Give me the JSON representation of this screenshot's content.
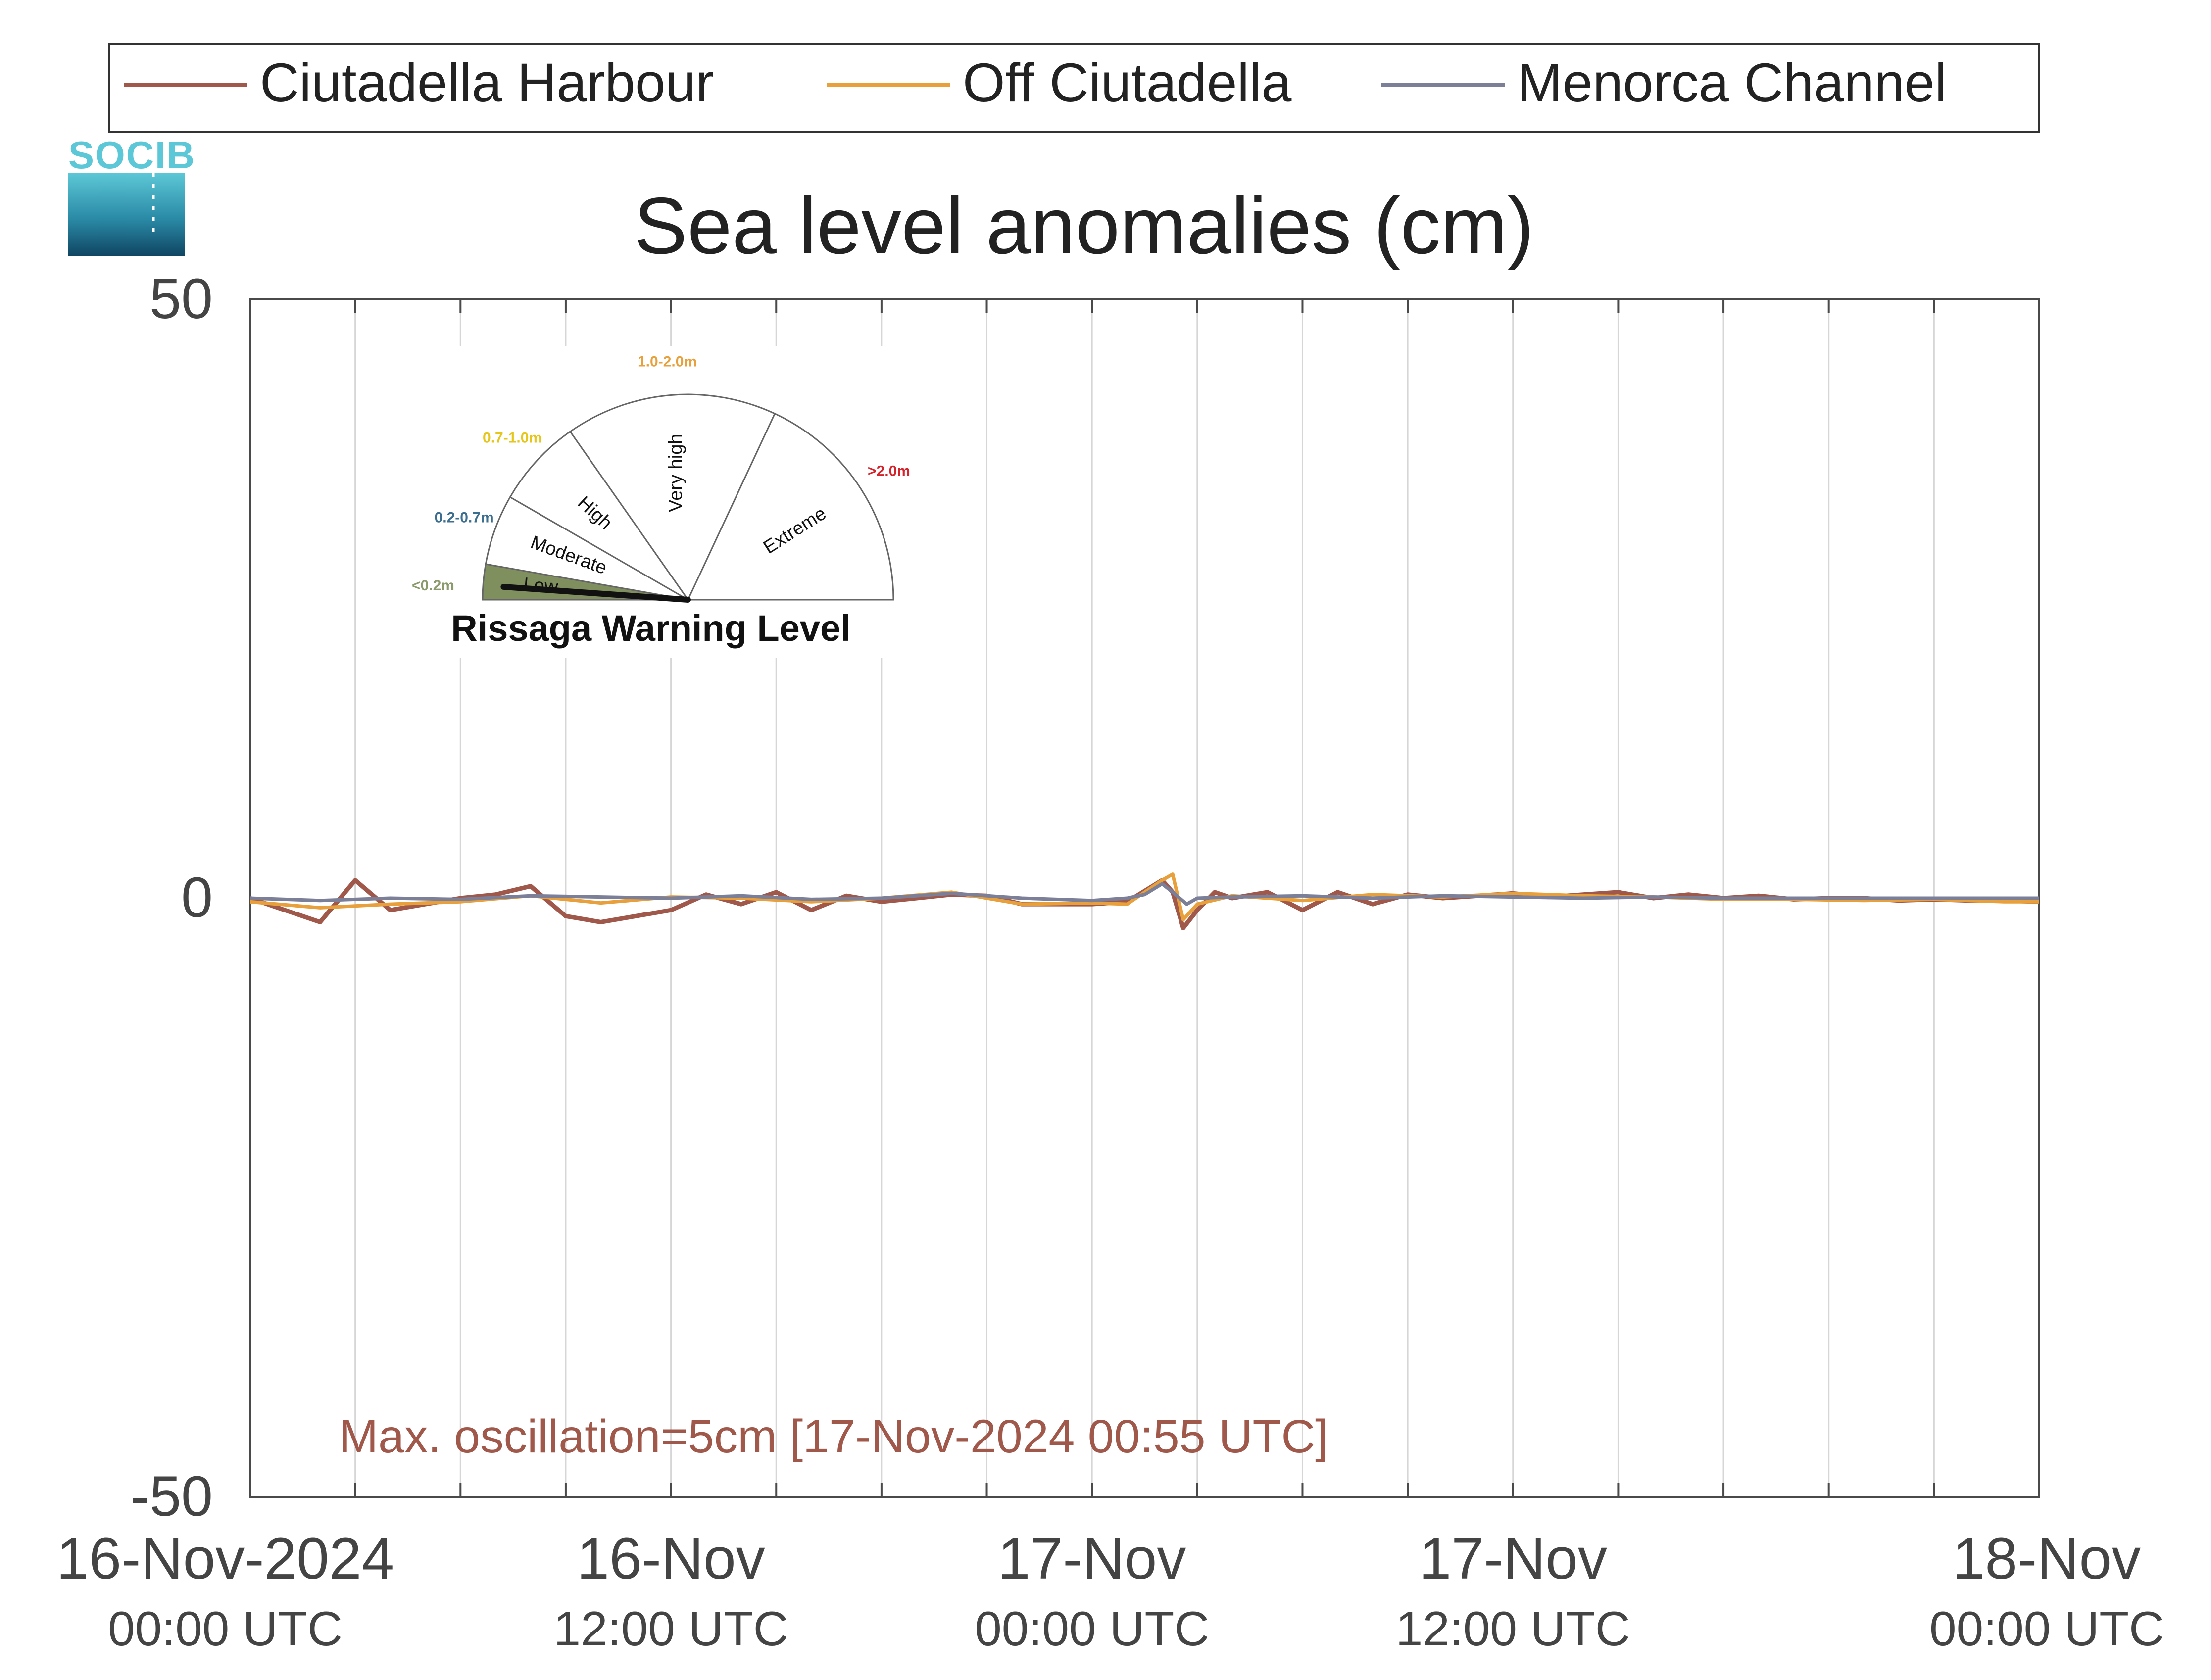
{
  "logo": {
    "text": "SOCIB"
  },
  "chart_data": {
    "type": "line",
    "title": "Sea level anomalies (cm)",
    "xlabel": "",
    "ylabel": "",
    "ylim": [
      -50,
      50
    ],
    "y_ticks": [
      "50",
      "0",
      "-50"
    ],
    "x_range_hours": [
      0,
      51
    ],
    "x_ticks": [
      {
        "date": "16-Nov-2024",
        "time": "00:00 UTC"
      },
      {
        "date": "16-Nov",
        "time": "12:00 UTC"
      },
      {
        "date": "17-Nov",
        "time": "00:00 UTC"
      },
      {
        "date": "17-Nov",
        "time": "12:00 UTC"
      },
      {
        "date": "18-Nov",
        "time": "00:00 UTC"
      }
    ],
    "grid": true,
    "legend_position": "top",
    "series": [
      {
        "name": "Ciutadella Harbour",
        "color": "#a0584a",
        "x": [
          0,
          1,
          2,
          3,
          4,
          5,
          6,
          7,
          8,
          9,
          10,
          11,
          12,
          13,
          14,
          15,
          16,
          17,
          18,
          19,
          20,
          21,
          22,
          23,
          24,
          25,
          26,
          26.3,
          26.6,
          27,
          27.5,
          28,
          29,
          30,
          31,
          32,
          33,
          34,
          35,
          36,
          37,
          38,
          39,
          40,
          41,
          42,
          43,
          44,
          45,
          46,
          47,
          48,
          49,
          50,
          51
        ],
        "y": [
          0,
          -1,
          -2,
          1.5,
          -1,
          -0.5,
          0,
          0.3,
          1,
          -1.5,
          -2,
          -1.5,
          -1,
          0.3,
          -0.5,
          0.5,
          -1,
          0.2,
          -0.3,
          0,
          0.3,
          0.2,
          -0.5,
          -0.5,
          -0.5,
          -0.3,
          1.5,
          0.5,
          -2.5,
          -1,
          0.5,
          0,
          0.5,
          -1,
          0.5,
          -0.5,
          0.3,
          0,
          0.2,
          0.4,
          0.1,
          0.3,
          0.5,
          0,
          0.3,
          0,
          0.2,
          -0.1,
          0,
          0,
          -0.2,
          -0.1,
          -0.2,
          -0.2,
          -0.3
        ]
      },
      {
        "name": "Off Ciutadella",
        "color": "#e8a03c",
        "x": [
          0,
          2,
          4,
          6,
          8,
          10,
          12,
          14,
          16,
          18,
          20,
          22,
          24,
          25,
          26,
          26.3,
          26.6,
          27,
          28,
          30,
          32,
          34,
          36,
          38,
          40,
          42,
          44,
          46,
          48,
          50,
          51
        ],
        "y": [
          -0.3,
          -0.8,
          -0.5,
          -0.3,
          0.2,
          -0.4,
          0.1,
          0,
          -0.3,
          0,
          0.5,
          -0.5,
          -0.4,
          -0.5,
          1.5,
          2,
          -1.8,
          -0.5,
          0.2,
          -0.2,
          0.3,
          0.1,
          0.4,
          0.2,
          0.1,
          -0.1,
          -0.1,
          -0.2,
          -0.1,
          -0.3,
          -0.3
        ]
      },
      {
        "name": "Menorca Channel",
        "color": "#7b7f98",
        "x": [
          0,
          2,
          4,
          6,
          8,
          10,
          12,
          14,
          16,
          18,
          20,
          22,
          24,
          25,
          25.5,
          26,
          26.3,
          26.7,
          27,
          28,
          30,
          32,
          34,
          36,
          38,
          40,
          42,
          44,
          46,
          48,
          50,
          51
        ],
        "y": [
          0,
          -0.2,
          0,
          -0.1,
          0.2,
          0.1,
          0,
          0.2,
          -0.1,
          0,
          0.4,
          0,
          -0.2,
          0,
          0.3,
          1.2,
          0.5,
          -0.5,
          0,
          0.1,
          0.2,
          0,
          0.2,
          0.1,
          0,
          0.1,
          0,
          0,
          0,
          0,
          0,
          0
        ]
      }
    ],
    "annotation": "Max. oscillation=5cm [17-Nov-2024 00:55 UTC]"
  },
  "warning_gauge": {
    "title": "Rissaga Warning Level",
    "current_level": "Low",
    "levels": [
      {
        "name": "Low",
        "range": "<0.2m",
        "color": "#8a9a6a"
      },
      {
        "name": "Moderate",
        "range": "0.2-0.7m",
        "color": "#3c6e8f"
      },
      {
        "name": "High",
        "range": "0.7-1.0m",
        "color": "#e6c619"
      },
      {
        "name": "Very high",
        "range": "1.0-2.0m",
        "color": "#e8a03c"
      },
      {
        "name": "Extreme",
        "range": ">2.0m",
        "color": "#d4232a"
      }
    ]
  }
}
